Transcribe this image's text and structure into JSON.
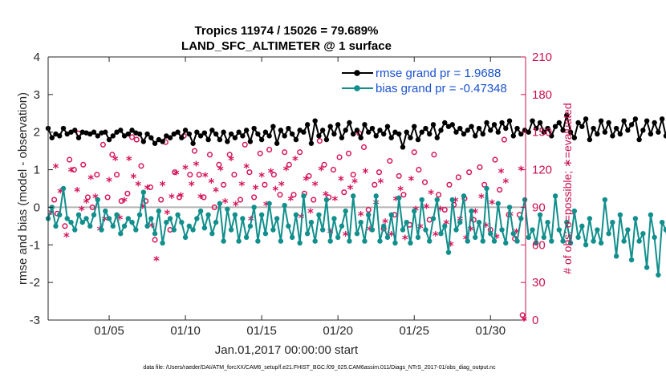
{
  "chart_data": {
    "type": "line",
    "title": "Tropics 11974 / 15026 = 79.689%",
    "subtitle": "LAND_SFC_ALTIMETER @ 1 surface",
    "xlabel": "Jan.01,2017 00:00:00 start",
    "ylabel": "rmse and bias (model - observation)",
    "y2label": "# of obs: o=possible; ∗=evaluated",
    "xlim": [
      1,
      32.3
    ],
    "ylim": [
      -3,
      4
    ],
    "y2lim": [
      0,
      210
    ],
    "xtick_values": [
      5,
      10,
      15,
      20,
      25,
      30
    ],
    "xticks": [
      "01/05",
      "01/10",
      "01/15",
      "01/20",
      "01/25",
      "01/30"
    ],
    "ytick_values": [
      -3,
      -2,
      -1,
      0,
      1,
      2,
      3,
      4
    ],
    "yticks": [
      "-3",
      "-2",
      "-1",
      "0",
      "1",
      "2",
      "3",
      "4"
    ],
    "y2tick_values": [
      0,
      30,
      60,
      90,
      120,
      150,
      180,
      210
    ],
    "y2ticks": [
      "0",
      "30",
      "60",
      "90",
      "120",
      "150",
      "180",
      "210"
    ],
    "x_start": 1.0,
    "x_step": 0.25,
    "series": [
      {
        "name": "rmse grand pr = 1.9688",
        "color": "#000000",
        "axis": "left",
        "values": [
          2.1,
          1.85,
          1.95,
          1.9,
          2.1,
          1.95,
          2.0,
          2.05,
          1.85,
          2.0,
          1.98,
          1.95,
          2.0,
          1.9,
          1.98,
          2.0,
          1.8,
          1.9,
          2.0,
          2.05,
          1.9,
          1.95,
          2.05,
          1.98,
          1.95,
          1.75,
          1.95,
          1.85,
          1.7,
          1.8,
          1.75,
          1.9,
          1.85,
          1.95,
          2.0,
          1.85,
          2.05,
          1.95,
          1.7,
          2.0,
          1.9,
          1.98,
          1.8,
          2.05,
          1.95,
          1.8,
          2.0,
          1.75,
          1.95,
          1.85,
          2.0,
          1.9,
          2.05,
          1.75,
          2.1,
          1.95,
          1.8,
          2.0,
          1.9,
          2.15,
          1.7,
          2.05,
          1.9,
          2.1,
          1.95,
          1.8,
          2.05,
          2.0,
          2.2,
          1.7,
          2.3,
          1.9,
          2.05,
          1.8,
          2.15,
          1.95,
          2.2,
          1.85,
          2.05,
          2.25,
          1.95,
          2.05,
          1.85,
          2.2,
          2.0,
          2.1,
          1.9,
          2.05,
          1.95,
          2.15,
          1.85,
          2.0,
          1.95,
          1.6,
          2.0,
          1.85,
          2.15,
          1.8,
          2.0,
          2.1,
          1.95,
          2.2,
          1.85,
          2.05,
          2.25,
          2.15,
          2.2,
          2.0,
          2.1,
          1.95,
          2.05,
          2.15,
          1.9,
          2.1,
          1.95,
          2.25,
          2.05,
          2.2,
          2.0,
          2.25,
          2.1,
          2.3,
          1.9,
          2.1,
          1.95,
          2.05,
          2.0,
          2.3,
          2.1,
          2.25,
          2.0,
          2.1,
          1.9,
          2.15,
          2.25,
          2.05,
          2.45,
          2.0,
          1.85,
          2.25,
          2.15,
          2.35,
          1.8,
          2.1,
          1.95,
          2.3,
          2.0,
          2.25,
          1.9,
          2.1,
          1.95,
          2.3,
          2.05,
          2.2,
          2.35,
          1.8,
          2.05,
          2.3,
          1.95,
          2.25,
          2.0,
          2.35,
          1.9,
          2.25,
          2.05,
          2.15,
          1.8,
          2.05,
          2.2,
          1.95,
          2.3,
          1.85,
          1.9,
          2.1,
          1.95,
          2.1,
          2.3,
          1.85,
          1.9,
          1.75
        ]
      },
      {
        "name": "bias grand pr = -0.47348",
        "color": "#108f8c",
        "axis": "left",
        "values": [
          -0.3,
          0.0,
          -0.5,
          -0.2,
          0.5,
          -0.3,
          -0.4,
          -0.6,
          -0.2,
          -0.4,
          -0.3,
          -0.5,
          -0.2,
          0.2,
          -0.6,
          -0.1,
          -0.3,
          -0.5,
          -0.2,
          -0.7,
          -0.5,
          -0.3,
          -0.4,
          -0.6,
          -0.2,
          0.4,
          -0.5,
          -0.3,
          -0.7,
          -0.1,
          -0.95,
          -0.4,
          -0.3,
          -0.6,
          -0.2,
          -0.4,
          -0.8,
          -0.5,
          -0.6,
          -0.3,
          -0.1,
          -0.55,
          -0.2,
          -0.7,
          -0.4,
          0.1,
          -0.9,
          -0.05,
          -0.6,
          -0.2,
          -0.9,
          -0.3,
          -0.8,
          -0.5,
          0.0,
          -0.9,
          -0.2,
          -0.7,
          0.1,
          -0.6,
          -0.3,
          -0.9,
          0.05,
          -0.5,
          -0.8,
          -0.2,
          -0.95,
          0.3,
          -0.7,
          -0.4,
          -0.9,
          -0.2,
          -0.6,
          0.2,
          -0.9,
          -0.3,
          -0.8,
          -0.5,
          -0.1,
          -0.9,
          0.3,
          -0.7,
          -0.4,
          -0.9,
          -0.2,
          -0.6,
          0.3,
          -0.9,
          -0.5,
          -0.8,
          -0.2,
          -0.95,
          0.25,
          -0.6,
          -0.4,
          -0.95,
          -0.1,
          -0.8,
          0.2,
          -0.6,
          -0.9,
          -0.3,
          0.2,
          -0.7,
          -0.5,
          -1.2,
          0.2,
          -0.6,
          -0.4,
          0.3,
          -0.9,
          -0.1,
          -0.8,
          -0.4,
          -0.9,
          0.5,
          -0.7,
          -0.9,
          0.1,
          -0.6,
          -0.95,
          0.0,
          -0.7,
          -0.9,
          -0.3,
          0.2,
          -0.8,
          -0.6,
          -0.95,
          -0.2,
          -0.8,
          -0.4,
          -0.9,
          0.3,
          -0.6,
          -0.9,
          -0.4,
          -0.95,
          -0.1,
          -0.8,
          -0.5,
          -1.0,
          -0.3,
          -0.9,
          -0.6,
          -0.95,
          0.2,
          -0.7,
          -0.4,
          -1.3,
          -0.2,
          -0.9,
          -0.6,
          -1.4,
          -0.3,
          -0.9,
          -0.7,
          -1.6,
          -0.2,
          -0.8,
          -1.8,
          -0.4,
          -0.6,
          -1.2,
          -0.3,
          -0.8,
          -1.0,
          -0.5,
          -1.1,
          -0.4,
          -0.9,
          -1.2,
          -0.6,
          -0.2,
          -1.05,
          -0.3,
          -0.5,
          -0.95,
          -0.7,
          -1.1,
          -0.15,
          -0.05
        ]
      }
    ],
    "obs_possible": {
      "name": "o=possible",
      "color": "#d5145a",
      "axis": "right",
      "points": [
        [
          1.4,
          96
        ],
        [
          1.6,
          85
        ],
        [
          2.1,
          75
        ],
        [
          2.4,
          128
        ],
        [
          2.7,
          120
        ],
        [
          3.0,
          149
        ],
        [
          3.3,
          124
        ],
        [
          3.6,
          98
        ],
        [
          3.9,
          90
        ],
        [
          4.2,
          116
        ],
        [
          4.6,
          140
        ],
        [
          4.9,
          98
        ],
        [
          5.2,
          132
        ],
        [
          5.5,
          116
        ],
        [
          5.8,
          95
        ],
        [
          6.2,
          101
        ],
        [
          6.5,
          146
        ],
        [
          6.8,
          144
        ],
        [
          7.1,
          123
        ],
        [
          7.4,
          95
        ],
        [
          7.7,
          106
        ],
        [
          8.0,
          64
        ],
        [
          8.4,
          96
        ],
        [
          8.7,
          142
        ],
        [
          9.0,
          72
        ],
        [
          9.3,
          118
        ],
        [
          9.6,
          98
        ],
        [
          9.9,
          147
        ],
        [
          10.3,
          116
        ],
        [
          10.6,
          135
        ],
        [
          10.9,
          116
        ],
        [
          11.2,
          98
        ],
        [
          11.6,
          132
        ],
        [
          11.9,
          90
        ],
        [
          12.2,
          124
        ],
        [
          12.5,
          108
        ],
        [
          12.9,
          132
        ],
        [
          13.2,
          116
        ],
        [
          13.6,
          96
        ],
        [
          13.9,
          140
        ],
        [
          14.2,
          118
        ],
        [
          14.5,
          98
        ],
        [
          14.9,
          133
        ],
        [
          15.2,
          108
        ],
        [
          15.5,
          136
        ],
        [
          15.8,
          116
        ],
        [
          16.2,
          100
        ],
        [
          16.5,
          134
        ],
        [
          16.8,
          124
        ],
        [
          17.1,
          100
        ],
        [
          17.5,
          134
        ],
        [
          17.8,
          101
        ],
        [
          18.1,
          115
        ],
        [
          18.4,
          96
        ],
        [
          18.8,
          143
        ],
        [
          19.1,
          124
        ],
        [
          19.4,
          98
        ],
        [
          19.7,
          120
        ],
        [
          20.1,
          130
        ],
        [
          20.4,
          102
        ],
        [
          20.7,
          133
        ],
        [
          21.0,
          116
        ],
        [
          21.4,
          149
        ],
        [
          21.7,
          138
        ],
        [
          22.0,
          88
        ],
        [
          22.4,
          108
        ],
        [
          22.7,
          118
        ],
        [
          23.0,
          73
        ],
        [
          23.4,
          127
        ],
        [
          23.7,
          84
        ],
        [
          24.0,
          115
        ],
        [
          24.3,
          100
        ],
        [
          24.7,
          76
        ],
        [
          25.0,
          134
        ],
        [
          25.3,
          120
        ],
        [
          25.7,
          110
        ],
        [
          26.0,
          80
        ],
        [
          26.3,
          132
        ],
        [
          26.6,
          100
        ],
        [
          27.0,
          88
        ],
        [
          27.3,
          108
        ],
        [
          27.6,
          92
        ],
        [
          27.9,
          114
        ],
        [
          28.3,
          97
        ],
        [
          28.6,
          118
        ],
        [
          28.9,
          80
        ],
        [
          29.3,
          122
        ],
        [
          29.6,
          108
        ],
        [
          30.0,
          72
        ],
        [
          30.3,
          128
        ],
        [
          30.6,
          104
        ],
        [
          30.9,
          144
        ],
        [
          31.2,
          84
        ],
        [
          31.6,
          65
        ],
        [
          31.9,
          84
        ],
        [
          32.1,
          4
        ]
      ]
    },
    "obs_evaluated": {
      "name": "∗=evaluated",
      "color": "#d5145a",
      "axis": "right",
      "points": [
        [
          1.2,
          85
        ],
        [
          1.5,
          122
        ],
        [
          1.8,
          102
        ],
        [
          2.2,
          67
        ],
        [
          2.5,
          119
        ],
        [
          2.9,
          103
        ],
        [
          3.2,
          88
        ],
        [
          3.5,
          94
        ],
        [
          3.8,
          113
        ],
        [
          4.1,
          98
        ],
        [
          4.4,
          72
        ],
        [
          4.7,
          80
        ],
        [
          5.0,
          111
        ],
        [
          5.4,
          128
        ],
        [
          5.7,
          81
        ],
        [
          6.0,
          95
        ],
        [
          6.3,
          128
        ],
        [
          6.6,
          114
        ],
        [
          6.9,
          108
        ],
        [
          7.2,
          90
        ],
        [
          7.5,
          105
        ],
        [
          7.8,
          75
        ],
        [
          8.1,
          48
        ],
        [
          8.5,
          108
        ],
        [
          8.8,
          85
        ],
        [
          9.1,
          98
        ],
        [
          9.4,
          117
        ],
        [
          9.7,
          99
        ],
        [
          10.0,
          121
        ],
        [
          10.4,
          108
        ],
        [
          10.7,
          124
        ],
        [
          11.0,
          98
        ],
        [
          11.3,
          115
        ],
        [
          11.7,
          110
        ],
        [
          12.0,
          103
        ],
        [
          12.3,
          120
        ],
        [
          12.6,
          94
        ],
        [
          13.0,
          128
        ],
        [
          13.3,
          92
        ],
        [
          13.7,
          108
        ],
        [
          14.0,
          122
        ],
        [
          14.3,
          80
        ],
        [
          14.6,
          105
        ],
        [
          15.0,
          115
        ],
        [
          15.3,
          92
        ],
        [
          15.6,
          118
        ],
        [
          15.9,
          104
        ],
        [
          16.3,
          108
        ],
        [
          16.6,
          120
        ],
        [
          16.9,
          96
        ],
        [
          17.2,
          128
        ],
        [
          17.6,
          82
        ],
        [
          17.9,
          112
        ],
        [
          18.2,
          86
        ],
        [
          18.5,
          108
        ],
        [
          18.9,
          120
        ],
        [
          19.2,
          100
        ],
        [
          19.5,
          70
        ],
        [
          19.8,
          96
        ],
        [
          20.2,
          112
        ],
        [
          20.5,
          68
        ],
        [
          20.8,
          105
        ],
        [
          21.1,
          110
        ],
        [
          21.5,
          84
        ],
        [
          21.8,
          118
        ],
        [
          22.1,
          72
        ],
        [
          22.5,
          93
        ],
        [
          22.8,
          110
        ],
        [
          23.1,
          78
        ],
        [
          23.5,
          68
        ],
        [
          23.8,
          96
        ],
        [
          24.1,
          104
        ],
        [
          24.4,
          65
        ],
        [
          24.8,
          112
        ],
        [
          25.1,
          88
        ],
        [
          25.4,
          74
        ],
        [
          25.8,
          90
        ],
        [
          26.1,
          101
        ],
        [
          26.4,
          68
        ],
        [
          26.7,
          88
        ],
        [
          27.1,
          77
        ],
        [
          27.4,
          60
        ],
        [
          27.7,
          95
        ],
        [
          28.0,
          80
        ],
        [
          28.4,
          65
        ],
        [
          28.7,
          72
        ],
        [
          29.0,
          86
        ],
        [
          29.4,
          98
        ],
        [
          29.7,
          75
        ],
        [
          30.1,
          93
        ],
        [
          30.4,
          66
        ],
        [
          30.7,
          118
        ],
        [
          31.0,
          110
        ],
        [
          31.3,
          84
        ],
        [
          31.7,
          70
        ],
        [
          32.0,
          120
        ],
        [
          32.2,
          0
        ]
      ]
    },
    "zero_line": true,
    "legend_position": "top-right",
    "grid": false
  },
  "footer": "data file: /Users/raeder/DAI/ATM_forcXX/CAM6_setup/f.e21.FHIST_BGC.f09_025.CAM6assim.011/Diags_NTrS_2017-01/obs_diag_output.nc"
}
